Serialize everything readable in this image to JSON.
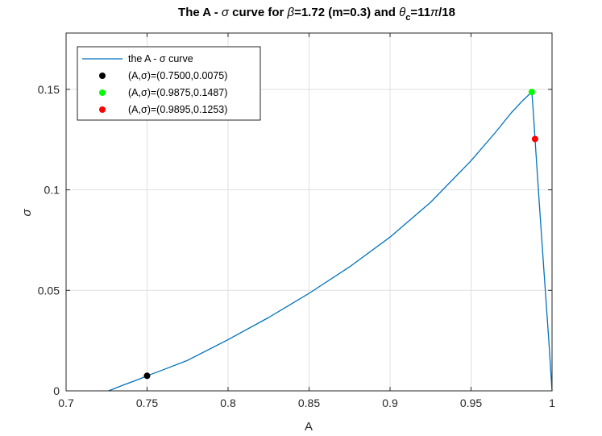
{
  "chart_data": {
    "type": "line",
    "title_parts": [
      "The A - ",
      "σ",
      " curve for ",
      "β",
      "=1.72 (m=0.3) and ",
      "θ",
      "c",
      "=11",
      "π",
      "/18"
    ],
    "xlabel": "A",
    "ylabel": "σ",
    "xlim": [
      0.7,
      1.0
    ],
    "ylim": [
      0,
      0.178
    ],
    "xticks": [
      0.7,
      0.75,
      0.8,
      0.85,
      0.9,
      0.95,
      1.0
    ],
    "xtick_labels": [
      "0.7",
      "0.75",
      "0.8",
      "0.85",
      "0.9",
      "0.95",
      "1"
    ],
    "yticks": [
      0,
      0.05,
      0.1,
      0.15
    ],
    "ytick_labels": [
      "0",
      "0.05",
      "0.1",
      "0.15"
    ],
    "grid": true,
    "legend_position": "top-left",
    "curve": {
      "name": "the A - σ curve",
      "color": "#0072BD",
      "x": [
        0.7262,
        0.735,
        0.745,
        0.75,
        0.76,
        0.775,
        0.8,
        0.825,
        0.85,
        0.875,
        0.9,
        0.925,
        0.95,
        0.965,
        0.975,
        0.982,
        0.9875,
        0.9885,
        0.9895,
        0.992,
        0.995,
        0.998,
        1.0
      ],
      "y": [
        0.0,
        0.0028,
        0.0058,
        0.0075,
        0.0105,
        0.0152,
        0.0255,
        0.0365,
        0.0485,
        0.0617,
        0.0765,
        0.0938,
        0.1145,
        0.1285,
        0.1385,
        0.1445,
        0.1487,
        0.138,
        0.1253,
        0.095,
        0.06,
        0.025,
        0.0
      ]
    },
    "points": [
      {
        "name": "(A,σ)=(0.7500,0.0075)",
        "x": 0.75,
        "y": 0.0075,
        "color": "#000000"
      },
      {
        "name": "(A,σ)=(0.9875,0.1487)",
        "x": 0.9875,
        "y": 0.1487,
        "color": "#00FF00"
      },
      {
        "name": "(A,σ)=(0.9895,0.1253)",
        "x": 0.9895,
        "y": 0.1253,
        "color": "#FF0000"
      }
    ]
  }
}
